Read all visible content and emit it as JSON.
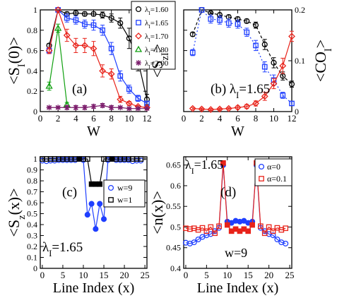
{
  "chart_data": [
    {
      "panel": "(a)",
      "type": "scatter",
      "xlabel": "W",
      "ylabel": "<S_I(0)>",
      "xlim": [
        0,
        12
      ],
      "ylim": [
        0,
        1
      ],
      "xticks": [
        0,
        2,
        4,
        6,
        8,
        10,
        12
      ],
      "yticks": [
        0,
        0.2,
        0.4,
        0.6,
        0.8,
        1
      ],
      "ytick_labels": [
        "0",
        "0.2",
        "0.4",
        "0.6",
        "0.8",
        "1"
      ],
      "legend_position": "top-right",
      "series": [
        {
          "name": "λ_I=1.60",
          "marker": "circle",
          "color": "#000000",
          "x": [
            1,
            2,
            3,
            4,
            5,
            6,
            7,
            8,
            9,
            10,
            11,
            12
          ],
          "y": [
            0.65,
            1.0,
            0.96,
            0.97,
            0.96,
            0.96,
            0.95,
            0.92,
            0.87,
            0.72,
            0.5,
            0.12
          ],
          "err": [
            0.02,
            0,
            0.02,
            0.02,
            0.02,
            0.02,
            0.03,
            0.04,
            0.05,
            0.1,
            0.1,
            0.05
          ]
        },
        {
          "name": "λ_I=1.65",
          "marker": "square",
          "color": "#1f3fff",
          "x": [
            1,
            2,
            3,
            4,
            5,
            6,
            7,
            8,
            9,
            10,
            11,
            12
          ],
          "y": [
            0.6,
            1.0,
            0.92,
            0.9,
            0.86,
            0.85,
            0.8,
            0.62,
            0.35,
            0.22,
            0.13,
            0.08
          ],
          "err": [
            0.03,
            0,
            0.04,
            0.04,
            0.04,
            0.05,
            0.05,
            0.06,
            0.05,
            0.04,
            0.03,
            0.02
          ]
        },
        {
          "name": "λ_I=1.70",
          "marker": "diamond",
          "color": "#e8231a",
          "x": [
            1,
            2,
            3,
            4,
            5,
            6,
            7,
            8,
            9,
            10,
            11,
            12
          ],
          "y": [
            0.6,
            1.0,
            0.75,
            0.65,
            0.65,
            0.62,
            0.4,
            0.37,
            0.12,
            0.08,
            0.05,
            0.04
          ],
          "err": [
            0.03,
            0,
            0.06,
            0.07,
            0.07,
            0.07,
            0.06,
            0.05,
            0.03,
            0.02,
            0.01,
            0.01
          ]
        },
        {
          "name": "λ_I=1.80",
          "marker": "triangle",
          "color": "#10a010",
          "x": [
            1,
            2,
            3
          ],
          "y": [
            0.25,
            0.82,
            0.07
          ],
          "err": [
            0.04,
            0.04,
            0.02
          ]
        },
        {
          "name": "λ_I=2.00",
          "marker": "star",
          "color": "#7a1a6a",
          "x": [
            1,
            2,
            3,
            4,
            5,
            6,
            7,
            8,
            9,
            10,
            11,
            12
          ],
          "y": [
            0.04,
            0.04,
            0.04,
            0.04,
            0.04,
            0.05,
            0.06,
            0.04,
            0.04,
            0.03,
            0.03,
            0.03
          ],
          "err": [
            0.01,
            0.01,
            0.02,
            0.02,
            0.02,
            0.02,
            0.02,
            0.02,
            0.01,
            0.01,
            0.01,
            0.01
          ]
        }
      ],
      "annotation": "(a)"
    },
    {
      "panel": "(b)",
      "type": "scatter",
      "xlabel": "W",
      "ylabel": "<S_zI>",
      "ylabel_right": "<CO_I>",
      "xlim": [
        0,
        12
      ],
      "ylim": [
        0,
        1
      ],
      "ylim_right": [
        0,
        0.2
      ],
      "xticks": [
        0,
        2,
        4,
        6,
        8,
        10,
        12
      ],
      "yticks_right": [
        0,
        0.1,
        0.2
      ],
      "annotation": "(b) λ_I=1.65",
      "series": [
        {
          "name": "<S_zI> black",
          "marker": "circle",
          "color": "#000000",
          "axis": "left",
          "line": "dashed",
          "x": [
            1,
            2,
            3,
            4,
            5,
            6,
            7,
            8,
            9,
            10,
            11,
            12
          ],
          "y": [
            0.76,
            1.0,
            0.97,
            0.95,
            0.93,
            0.91,
            0.89,
            0.85,
            0.66,
            0.48,
            0.35,
            0.27
          ],
          "err": [
            0.02,
            0,
            0.01,
            0.02,
            0.02,
            0.02,
            0.02,
            0.03,
            0.05,
            0.05,
            0.04,
            0.03
          ]
        },
        {
          "name": "<S_zI> blue",
          "marker": "square",
          "color": "#1f3fff",
          "axis": "left",
          "line": "dotted",
          "x": [
            1,
            2,
            3,
            4,
            5,
            6,
            7,
            8,
            9,
            10,
            11,
            12
          ],
          "y": [
            0.58,
            1.0,
            0.91,
            0.9,
            0.87,
            0.86,
            0.78,
            0.65,
            0.44,
            0.31,
            0.16,
            0.08
          ],
          "err": [
            0.03,
            0,
            0.04,
            0.04,
            0.04,
            0.04,
            0.04,
            0.05,
            0.05,
            0.05,
            0.03,
            0.02
          ]
        },
        {
          "name": "<CO_I>",
          "marker": "diamond",
          "color": "#e8231a",
          "axis": "right",
          "line": "solid",
          "x": [
            1,
            2,
            3,
            4,
            5,
            6,
            7,
            8,
            9,
            10,
            11,
            12
          ],
          "y": [
            0.006,
            0.005,
            0.004,
            0.005,
            0.006,
            0.008,
            0.01,
            0.016,
            0.03,
            0.055,
            0.09,
            0.148
          ],
          "err": [
            0.002,
            0.002,
            0.002,
            0.002,
            0.002,
            0.003,
            0.004,
            0.005,
            0.008,
            0.01,
            0.015,
            0.01
          ]
        }
      ]
    },
    {
      "panel": "(c)",
      "type": "line",
      "xlabel": "Line Index (x)",
      "ylabel": "<S_z(x)>",
      "xlim": [
        -0.5,
        25.5
      ],
      "ylim": [
        0,
        1.02
      ],
      "xticks": [
        0,
        5,
        10,
        15,
        20,
        25
      ],
      "yticks": [
        0,
        0.1,
        0.2,
        0.3,
        0.4,
        0.5,
        0.6,
        0.7,
        0.8,
        0.9,
        1
      ],
      "annotation": "(c)",
      "annotation2": "λ_I=1.65",
      "series": [
        {
          "name": "w=9",
          "marker": "circle",
          "color": "#1f3fff",
          "x": [
            0,
            1,
            2,
            3,
            4,
            5,
            6,
            7,
            8,
            9,
            10,
            11,
            12,
            13,
            14,
            15,
            16,
            17,
            18,
            19,
            20,
            21,
            22,
            23,
            24
          ],
          "y": [
            0.985,
            0.98,
            0.985,
            0.985,
            0.99,
            0.99,
            0.99,
            0.99,
            0.99,
            1.0,
            0.99,
            0.49,
            0.59,
            0.36,
            0.59,
            0.45,
            0.99,
            1.0,
            0.99,
            0.99,
            0.99,
            0.99,
            0.98,
            0.985,
            0.985
          ],
          "filled": [
            false,
            false,
            false,
            false,
            false,
            false,
            false,
            false,
            false,
            true,
            false,
            true,
            true,
            true,
            true,
            true,
            false,
            true,
            false,
            false,
            false,
            false,
            false,
            false,
            false
          ]
        },
        {
          "name": "w=1",
          "marker": "square",
          "color": "#000000",
          "x": [
            0,
            1,
            2,
            3,
            4,
            5,
            6,
            7,
            8,
            9,
            10,
            11,
            12,
            13,
            14,
            15,
            16,
            17,
            18,
            19,
            20,
            21,
            22,
            23,
            24
          ],
          "y": [
            1.0,
            1.0,
            1.0,
            1.0,
            1.0,
            1.0,
            1.0,
            1.0,
            1.0,
            1.0,
            1.0,
            1.0,
            0.77,
            0.77,
            0.77,
            1.0,
            1.0,
            1.0,
            1.0,
            1.0,
            1.0,
            1.0,
            1.0,
            1.0,
            1.0
          ],
          "filled": [
            false,
            false,
            false,
            false,
            false,
            false,
            false,
            false,
            false,
            true,
            false,
            false,
            true,
            true,
            true,
            false,
            false,
            true,
            false,
            false,
            false,
            false,
            false,
            false,
            false
          ]
        }
      ],
      "legend_position": "center-right"
    },
    {
      "panel": "(d)",
      "type": "line",
      "xlabel": "Line Index (x)",
      "ylabel": "<n(x)>",
      "xlim": [
        -0.5,
        25.5
      ],
      "ylim": [
        0.4,
        0.67
      ],
      "xticks": [
        0,
        5,
        10,
        15,
        20,
        25
      ],
      "yticks": [
        0.4,
        0.45,
        0.5,
        0.55,
        0.6,
        0.65
      ],
      "annotation": "(d)",
      "annotation2": "λ_I=1.65",
      "annotation3": "w=9",
      "legend_position": "top-right",
      "series": [
        {
          "name": "α=0",
          "marker": "circle",
          "color": "#1f3fff",
          "x": [
            0,
            1,
            2,
            3,
            4,
            5,
            6,
            7,
            8,
            9,
            10,
            11,
            12,
            13,
            14,
            15,
            16,
            17,
            18,
            19,
            20,
            21,
            22,
            23,
            24
          ],
          "y": [
            0.462,
            0.46,
            0.463,
            0.47,
            0.476,
            0.48,
            0.483,
            0.49,
            0.498,
            0.65,
            0.513,
            0.51,
            0.515,
            0.513,
            0.515,
            0.51,
            0.513,
            0.65,
            0.498,
            0.49,
            0.483,
            0.48,
            0.47,
            0.463,
            0.46
          ],
          "filled": [
            false,
            false,
            false,
            false,
            false,
            false,
            false,
            false,
            false,
            true,
            true,
            true,
            true,
            true,
            true,
            true,
            true,
            true,
            false,
            false,
            false,
            false,
            false,
            false,
            false
          ]
        },
        {
          "name": "α=0.1",
          "marker": "square",
          "color": "#e8231a",
          "x": [
            0,
            1,
            2,
            3,
            4,
            5,
            6,
            7,
            8,
            9,
            10,
            11,
            12,
            13,
            14,
            15,
            16,
            17,
            18,
            19,
            20,
            21,
            22,
            23,
            24
          ],
          "y": [
            0.497,
            0.495,
            0.497,
            0.493,
            0.498,
            0.49,
            0.5,
            0.485,
            0.502,
            0.655,
            0.505,
            0.49,
            0.495,
            0.49,
            0.495,
            0.49,
            0.505,
            0.655,
            0.502,
            0.485,
            0.5,
            0.49,
            0.498,
            0.493,
            0.497
          ],
          "filled": [
            false,
            false,
            false,
            false,
            false,
            false,
            false,
            false,
            false,
            true,
            true,
            true,
            true,
            true,
            true,
            true,
            true,
            true,
            false,
            false,
            false,
            false,
            false,
            false,
            false
          ]
        }
      ]
    }
  ]
}
